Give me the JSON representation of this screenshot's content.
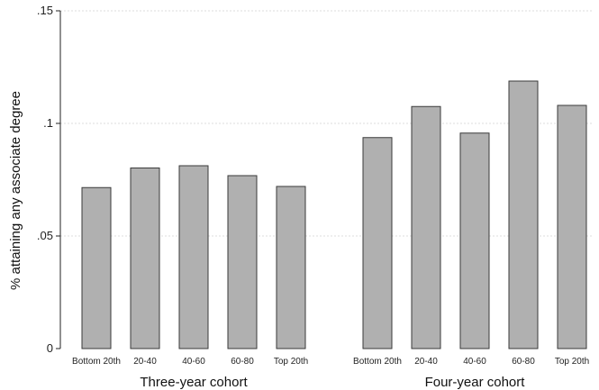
{
  "chart_data": {
    "type": "bar",
    "ylabel": "% attaining any associate degree",
    "ylim": [
      0,
      0.15
    ],
    "yticks": [
      {
        "value": 0,
        "label": "0"
      },
      {
        "value": 0.05,
        "label": ".05"
      },
      {
        "value": 0.1,
        "label": ".1"
      },
      {
        "value": 0.15,
        "label": ".15"
      }
    ],
    "grid": true,
    "bar_color": "#b0b0b0",
    "groups": [
      {
        "label": "Three-year cohort",
        "categories": [
          "Bottom 20th",
          "20-40",
          "40-60",
          "60-80",
          "Top 20th"
        ],
        "values": [
          0.0715,
          0.0802,
          0.0812,
          0.0768,
          0.072
        ]
      },
      {
        "label": "Four-year cohort",
        "categories": [
          "Bottom 20th",
          "20-40",
          "40-60",
          "60-80",
          "Top 20th"
        ],
        "values": [
          0.0937,
          0.1075,
          0.0957,
          0.1188,
          0.108
        ]
      }
    ]
  }
}
